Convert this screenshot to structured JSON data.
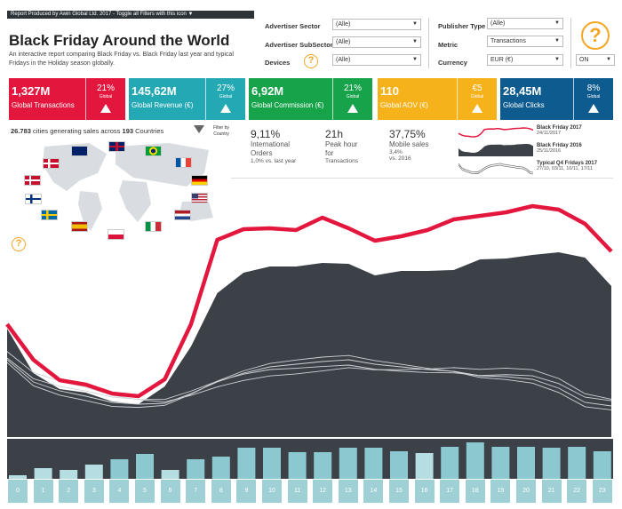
{
  "header": {
    "notice": "Report Produced by Awin Global Ltd. 2017 - Toggle all Filters with this icon ▼",
    "title": "Black Friday Around the World",
    "subtitle": "An interactive report comparing Black Friday vs. Black Friday last year and typical Fridays in the Holiday season globally."
  },
  "filters": {
    "advertiser_sector": {
      "label": "Advertiser Sector",
      "value": "(Alle)"
    },
    "advertiser_subsector": {
      "label": "Advertiser SubSector",
      "value": "(Alle)"
    },
    "devices": {
      "label": "Devices",
      "value": "(Alle)"
    },
    "publisher_type": {
      "label": "Publisher Type",
      "value": "(Alle)"
    },
    "metric": {
      "label": "Metric",
      "value": "Transactions"
    },
    "currency": {
      "label": "Currency",
      "value": "EUR (€)"
    },
    "toggle": {
      "value": "ON"
    }
  },
  "help_glyph": "?",
  "kpis": [
    {
      "value": "1,327M",
      "label": "Global Transactions",
      "pct": "21%",
      "scope": "Global",
      "color": "#e3173e"
    },
    {
      "value": "145,62M",
      "label": "Global Revenue (€)",
      "pct": "27%",
      "scope": "Global",
      "color": "#23a9b4"
    },
    {
      "value": "6,92M",
      "label": "Global Commission (€)",
      "pct": "21%",
      "scope": "Global",
      "color": "#16a34a"
    },
    {
      "value": "110",
      "label": "Global AOV (€)",
      "pct": "€5",
      "scope": "Global",
      "color": "#f5b21b"
    },
    {
      "value": "28,45M",
      "label": "Global Clicks",
      "pct": "8%",
      "scope": "Global",
      "color": "#0e5c8f"
    }
  ],
  "map": {
    "cities_count": "26.783",
    "cities_text": "cities generating sales across",
    "countries_count": "193",
    "countries_text": "Countries",
    "filter_label": "Filter by Country"
  },
  "stats": [
    {
      "big": "9,11%",
      "desc": [
        "International",
        "Orders"
      ],
      "small": "1,0% vs. last year"
    },
    {
      "big": "21h",
      "desc": [
        "Peak hour",
        "for"
      ],
      "small": "Transactions"
    },
    {
      "big": "37,75%",
      "desc": [
        "Mobile sales"
      ],
      "small1": "3,4%",
      "small": "vs. 2016"
    }
  ],
  "legend": [
    {
      "title": "Black Friday 2017",
      "sub": "24/11/2017"
    },
    {
      "title": "Black Friday 2016",
      "sub": "25/11/2016"
    },
    {
      "title": "Typical Q4 Fridays 2017",
      "sub": "27/10, 03/11, 10/11, 17/11"
    }
  ],
  "colors": {
    "bf2017": "#e3173e",
    "bf2016": "#3c4148",
    "typical": "#cfd3d8",
    "bar_dark": "#8cc8cf",
    "bar_light": "#b6dde2"
  },
  "chart_data": {
    "type": "area",
    "x": [
      0,
      1,
      2,
      3,
      4,
      5,
      6,
      7,
      8,
      9,
      10,
      11,
      12,
      13,
      14,
      15,
      16,
      17,
      18,
      19,
      20,
      21,
      22,
      23
    ],
    "series": [
      {
        "name": "Black Friday 2017",
        "style": "line",
        "values": [
          365,
          405,
          428,
          433,
          443,
          446,
          427,
          365,
          270,
          258,
          257,
          259,
          245,
          257,
          271,
          266,
          259,
          247,
          243,
          239,
          232,
          236,
          252,
          283
        ]
      },
      {
        "name": "Black Friday 2016",
        "style": "area",
        "values": [
          370,
          420,
          438,
          442,
          452,
          455,
          435,
          390,
          330,
          307,
          300,
          300,
          296,
          297,
          310,
          305,
          305,
          304,
          292,
          291,
          287,
          284,
          290,
          322
        ]
      },
      {
        "name": "Typical Q4 Fridays 2017",
        "style": "lines",
        "values": [
          405,
          430,
          440,
          446,
          453,
          455,
          454,
          443,
          430,
          420,
          413,
          410,
          407,
          405,
          410,
          413,
          416,
          418,
          423,
          424,
          427,
          437,
          453,
          457
        ]
      }
    ],
    "hourly_bars": [
      4,
      12,
      10,
      16,
      22,
      28,
      10,
      22,
      25,
      35,
      35,
      30,
      30,
      35,
      35,
      31,
      29,
      36,
      41,
      36,
      36,
      35,
      36,
      31
    ],
    "hour_labels": [
      "0",
      "1",
      "2",
      "3",
      "4",
      "5",
      "6",
      "7",
      "8",
      "9",
      "10",
      "11",
      "12",
      "13",
      "14",
      "15",
      "16",
      "17",
      "18",
      "19",
      "20",
      "21",
      "22",
      "23"
    ]
  }
}
